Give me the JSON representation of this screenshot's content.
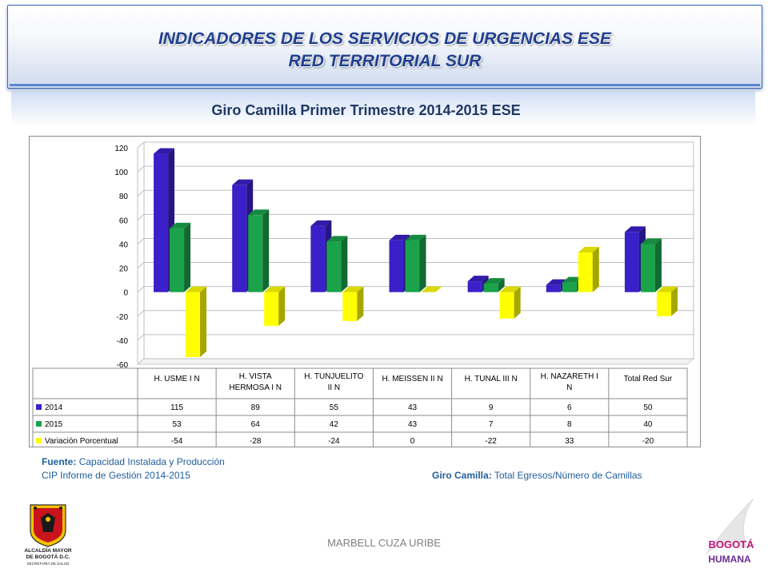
{
  "header": {
    "title_line1": "INDICADORES DE LOS SERVICIOS DE URGENCIAS ESE",
    "title_line2": "RED TERRITORIAL SUR"
  },
  "chart_data": {
    "type": "bar",
    "title": "Giro Camilla Primer Trimestre 2014-2015 ESE",
    "categories": [
      [
        "H. USME I N"
      ],
      [
        "H. VISTA",
        "HERMOSA I N"
      ],
      [
        "H. TUNJUELITO",
        "II N"
      ],
      [
        "H. MEISSEN II N"
      ],
      [
        "H. TUNAL  III N"
      ],
      [
        "H. NAZARETH I",
        "N"
      ],
      [
        "Total Red Sur"
      ]
    ],
    "series": [
      {
        "name": "2014",
        "color": "#3a20c8",
        "values": [
          115,
          89,
          55,
          43,
          9,
          6,
          50
        ]
      },
      {
        "name": "2015",
        "color": "#1aa34a",
        "values": [
          53,
          64,
          42,
          43,
          7,
          8,
          40
        ]
      },
      {
        "name": "Variación Porcentual",
        "color": "#ffff00",
        "values": [
          -54,
          -28,
          -24,
          0,
          -22,
          33,
          -20
        ]
      }
    ],
    "ylim": [
      -60,
      120
    ],
    "yticks": [
      -60,
      -40,
      -20,
      0,
      20,
      40,
      60,
      80,
      100,
      120
    ],
    "grid": true,
    "legend": "data-table"
  },
  "footer": {
    "source_label": "Fuente:",
    "source_value": "Capacidad Instalada y Producción",
    "report": "CIP Informe de Gestión 2014-2015",
    "formula_label": "Giro  Camilla:",
    "formula_value": "Total Egresos/Número de Camillas",
    "author": "MARBELL CUZA URIBE"
  },
  "logos": {
    "left_line1": "ALCALDÍA MAYOR",
    "left_line2": "DE BOGOTÁ D.C.",
    "left_line3": "SECRETARÍA DE SALUD",
    "right_line1": "BOGOTÁ",
    "right_line2": "HUMANA"
  }
}
